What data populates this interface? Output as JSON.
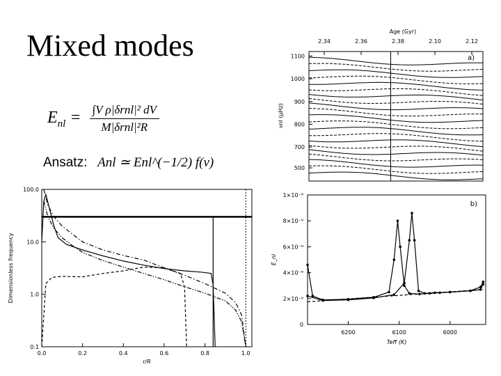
{
  "slide": {
    "title": "Mixed modes",
    "formula_lhs": "E",
    "formula_lhs_sub": "nl",
    "formula_num": "∫V ρ|δrnl|² dV",
    "formula_den": "M|δrnl|²R",
    "ansatz_label": "Ansatz:",
    "ansatz_formula": "Anl ≃ Enl^(−1/2) f(ν)"
  },
  "chart_data": [
    {
      "id": "propagation",
      "type": "line",
      "xlabel": "r/R",
      "ylabel": "Dimensionless frequency",
      "yscale": "log",
      "xlim": [
        0,
        1.03
      ],
      "ylim": [
        0.1,
        100
      ],
      "x_ticks": [
        "0.0",
        "0.2",
        "0.4",
        "0.6",
        "0.8",
        "1.0"
      ],
      "y_ticks": [
        "0.1",
        "1.0",
        "10.0",
        "100.0"
      ],
      "series": [
        {
          "style": "solid",
          "x": [
            0.0,
            0.01,
            0.02,
            0.04,
            0.06,
            0.08,
            0.12,
            0.2,
            0.3,
            0.4,
            0.5,
            0.6,
            0.7,
            0.78,
            0.83,
            0.84,
            0.85
          ],
          "y": [
            10,
            60,
            80,
            40,
            20,
            12,
            9,
            7,
            5.4,
            4.3,
            3.6,
            3.1,
            2.8,
            2.65,
            2.5,
            1.5,
            0.1
          ]
        },
        {
          "style": "dashed",
          "x": [
            0.0,
            0.02,
            0.05,
            0.1,
            0.2,
            0.3,
            0.4,
            0.5,
            0.6,
            0.68,
            0.7,
            0.71
          ],
          "y": [
            0.1,
            1.6,
            2.1,
            2.2,
            2.15,
            2.5,
            2.8,
            3.3,
            3.2,
            2.5,
            1.4,
            0.1
          ]
        },
        {
          "style": "dash-dot",
          "x": [
            0.01,
            0.03,
            0.06,
            0.1,
            0.15,
            0.2,
            0.3,
            0.4,
            0.5,
            0.6,
            0.7,
            0.8,
            0.9,
            0.95,
            0.98,
            1.0
          ],
          "y": [
            100,
            50,
            30,
            20,
            14,
            10,
            7,
            5.5,
            4.5,
            3.2,
            2.3,
            1.6,
            1.05,
            0.7,
            0.4,
            0.1
          ]
        },
        {
          "style": "dash-dot-dot",
          "x": [
            0.01,
            0.03,
            0.06,
            0.1,
            0.15,
            0.2,
            0.3,
            0.4,
            0.5,
            0.6,
            0.7,
            0.8,
            0.9,
            0.95,
            0.98,
            1.0
          ],
          "y": [
            60,
            30,
            18,
            12,
            8.5,
            6.3,
            4.4,
            3.3,
            2.5,
            1.9,
            1.4,
            1.05,
            0.75,
            0.5,
            0.3,
            0.1
          ]
        }
      ],
      "hlines": [
        {
          "y": 30,
          "style": "thick"
        }
      ],
      "vlines": [
        {
          "x": 0.84,
          "style": "solid"
        },
        {
          "x": 1.0,
          "style": "thin"
        }
      ]
    },
    {
      "id": "echelle",
      "type": "line",
      "panel_label": "a)",
      "top_axis_label": "Age (Gyr)",
      "top_ticks": [
        "2.34",
        "2.36",
        "2.38",
        "2.10",
        "2.12"
      ],
      "ylabel": "νnl (μHz)",
      "ylim": [
        550,
        1120
      ],
      "y_ticks": [
        "500",
        "700",
        "800",
        "900",
        "1000",
        "1100"
      ],
      "grid": false,
      "vline_at_fraction": 0.47
    },
    {
      "id": "inertia",
      "type": "line",
      "panel_label": "b)",
      "xlabel": "Teff (K)",
      "ylabel": "E_nl",
      "ylim": [
        0,
        1e-08
      ],
      "y_ticks": [
        "0",
        "2×10⁻⁹",
        "4×10⁻⁹",
        "6×10⁻⁹",
        "8×10⁻⁹",
        "1×10⁻⁸"
      ],
      "x_ticks": [
        "6200",
        "6100",
        "6000"
      ],
      "xlim": [
        6280,
        5930
      ],
      "series": [
        {
          "style": "solid-marked",
          "x": [
            6280,
            6270,
            6250,
            6200,
            6150,
            6120,
            6110,
            6103,
            6098,
            6090,
            6080,
            6060,
            6040,
            6020,
            6000,
            5960,
            5940,
            5935
          ],
          "y": [
            4.6e-09,
            2.2e-09,
            1.9e-09,
            1.95e-09,
            2.1e-09,
            2.5e-09,
            5e-09,
            8e-09,
            6e-09,
            3e-09,
            2.4e-09,
            2.35e-09,
            2.4e-09,
            2.45e-09,
            2.5e-09,
            2.6e-09,
            2.9e-09,
            3.3e-09
          ]
        },
        {
          "style": "solid-marked",
          "x": [
            6280,
            6250,
            6200,
            6150,
            6110,
            6090,
            6080,
            6075,
            6070,
            6062,
            6050,
            6030,
            6000,
            5960,
            5940,
            5935
          ],
          "y": [
            2.2e-09,
            1.85e-09,
            1.9e-09,
            2.05e-09,
            2.3e-09,
            3.2e-09,
            6.5e-09,
            8.6e-09,
            6.5e-09,
            2.6e-09,
            2.4e-09,
            2.45e-09,
            2.5e-09,
            2.6e-09,
            2.7e-09,
            3.1e-09
          ]
        },
        {
          "style": "dashed",
          "x": [
            6280,
            5935
          ],
          "y": [
            1.75e-09,
            2.7e-09
          ]
        }
      ]
    }
  ]
}
